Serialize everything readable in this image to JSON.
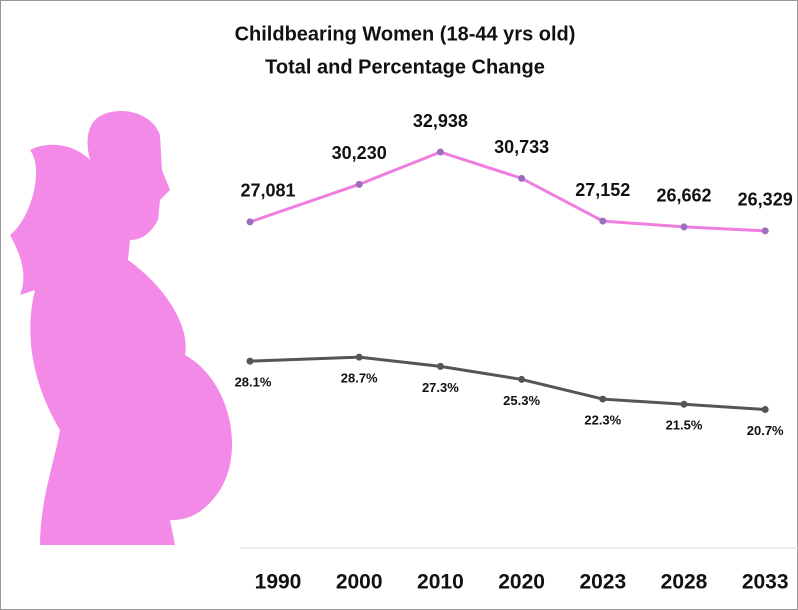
{
  "chart_data": {
    "type": "line",
    "title": "Childbearing Women (18-44 yrs old)",
    "subtitle": "Total and Percentage Change",
    "categories": [
      "1990",
      "2000",
      "2010",
      "2020",
      "2023",
      "2028",
      "2033"
    ],
    "series": [
      {
        "color": "#f07de0",
        "values": [
          27081,
          30230,
          32938,
          30733,
          27152,
          26662,
          26329
        ],
        "value_labels": [
          "27,081",
          "30,230",
          "32,938",
          "30,733",
          "27,152",
          "26,662",
          "26,329"
        ]
      },
      {
        "color": "#555555",
        "axis": "y2",
        "values": [
          28.1,
          28.7,
          27.3,
          25.3,
          22.3,
          21.5,
          20.7
        ],
        "value_labels": [
          "28.1%",
          "28.7%",
          "27.3%",
          "25.3%",
          "22.3%",
          "21.5%",
          "20.7%"
        ]
      }
    ],
    "ylim": [
      0,
      37300
    ],
    "y2lim": [
      0,
      68
    ]
  }
}
